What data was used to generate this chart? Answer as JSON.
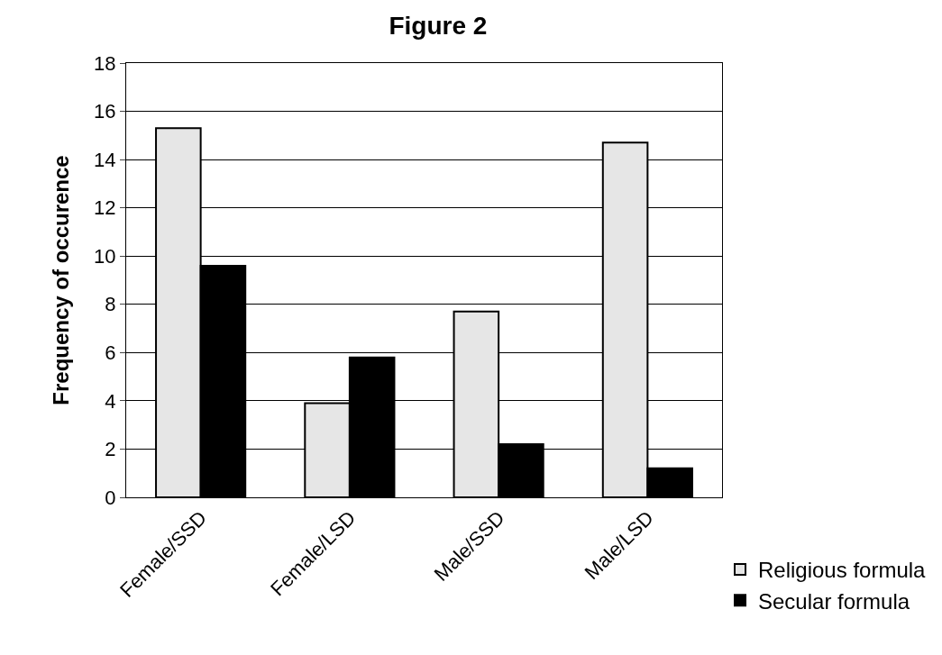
{
  "chart_data": {
    "type": "bar",
    "title": "Figure 2",
    "ylabel": "Frequency of occurence",
    "categories": [
      "Female/SSD",
      "Female/LSD",
      "Male/SSD",
      "Male/LSD"
    ],
    "series": [
      {
        "name": "Religious formula",
        "color": "#e6e6e6",
        "values": [
          15.3,
          3.9,
          7.7,
          14.7
        ]
      },
      {
        "name": "Secular formula",
        "color": "#000000",
        "values": [
          9.6,
          5.8,
          2.2,
          1.2
        ]
      }
    ],
    "ylim": [
      0,
      18
    ],
    "yticks": [
      0,
      2,
      4,
      6,
      8,
      10,
      12,
      14,
      16,
      18
    ],
    "grid": "y",
    "legend": "bottom right"
  }
}
